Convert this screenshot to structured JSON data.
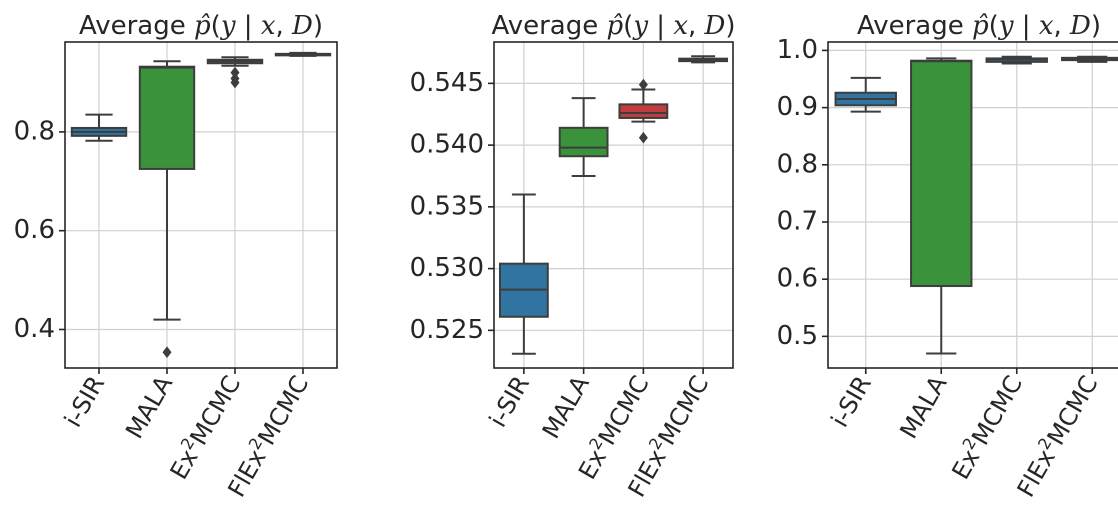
{
  "chart_data": [
    {
      "type": "box",
      "title": "Average p̂(y | x, 𝒟)",
      "categories": [
        "i-SIR",
        "MALA",
        "Ex²MCMC",
        "FlEx²MCMC"
      ],
      "colors": [
        "#3274a1",
        "#3a923a",
        "#3274a1",
        "#3274a1"
      ],
      "yticks": [
        0.4,
        0.6,
        0.8
      ],
      "ytick_labels": [
        "0.4",
        "0.6",
        "0.8"
      ],
      "ylim": [
        0.322,
        0.982
      ],
      "grid": true,
      "boxes": [
        {
          "whislo": 0.782,
          "q1": 0.792,
          "med": 0.8,
          "q3": 0.808,
          "whishi": 0.835,
          "fliers": []
        },
        {
          "whislo": 0.42,
          "q1": 0.725,
          "med": 0.93,
          "q3": 0.932,
          "whishi": 0.943,
          "fliers": [
            0.354
          ]
        },
        {
          "whislo": 0.934,
          "q1": 0.939,
          "med": 0.943,
          "q3": 0.946,
          "whishi": 0.951,
          "fliers": [
            0.92,
            0.908,
            0.9
          ]
        },
        {
          "whislo": 0.954,
          "q1": 0.956,
          "med": 0.957,
          "q3": 0.958,
          "whishi": 0.96,
          "fliers": []
        }
      ]
    },
    {
      "type": "box",
      "title": "Average p̂(y | x, 𝒟)",
      "categories": [
        "i-SIR",
        "MALA",
        "Ex²MCMC",
        "FlEx²MCMC"
      ],
      "colors": [
        "#3274a1",
        "#3a923a",
        "#c03d3e",
        "#3274a1"
      ],
      "yticks": [
        0.525,
        0.53,
        0.535,
        0.54,
        0.545
      ],
      "ytick_labels": [
        "0.525",
        "0.530",
        "0.535",
        "0.540",
        "0.545"
      ],
      "ylim": [
        0.52195,
        0.54835
      ],
      "grid": true,
      "boxes": [
        {
          "whislo": 0.5231,
          "q1": 0.5261,
          "med": 0.5283,
          "q3": 0.5304,
          "whishi": 0.536,
          "fliers": []
        },
        {
          "whislo": 0.5375,
          "q1": 0.5391,
          "med": 0.5398,
          "q3": 0.5414,
          "whishi": 0.5438,
          "fliers": []
        },
        {
          "whislo": 0.5419,
          "q1": 0.5422,
          "med": 0.5426,
          "q3": 0.5433,
          "whishi": 0.5445,
          "fliers": [
            0.5449,
            0.5406
          ]
        },
        {
          "whislo": 0.5467,
          "q1": 0.5468,
          "med": 0.5469,
          "q3": 0.547,
          "whishi": 0.5472,
          "fliers": []
        }
      ]
    },
    {
      "type": "box",
      "title": "Average p̂(y | x, 𝒟)",
      "categories": [
        "i-SIR",
        "MALA",
        "Ex²MCMC",
        "FlEx²MCMC"
      ],
      "colors": [
        "#3274a1",
        "#3a923a",
        "#3274a1",
        "#3274a1"
      ],
      "yticks": [
        0.5,
        0.6,
        0.7,
        0.8,
        0.9,
        1.0
      ],
      "ytick_labels": [
        "0.5",
        "0.6",
        "0.7",
        "0.8",
        "0.9",
        "1.0"
      ],
      "ylim": [
        0.4447,
        1.0147
      ],
      "grid": true,
      "boxes": [
        {
          "whislo": 0.893,
          "q1": 0.904,
          "med": 0.915,
          "q3": 0.926,
          "whishi": 0.952,
          "fliers": []
        },
        {
          "whislo": 0.47,
          "q1": 0.588,
          "med": 0.981,
          "q3": 0.982,
          "whishi": 0.986,
          "fliers": []
        },
        {
          "whislo": 0.977,
          "q1": 0.98,
          "med": 0.984,
          "q3": 0.986,
          "whishi": 0.989,
          "fliers": []
        },
        {
          "whislo": 0.98,
          "q1": 0.983,
          "med": 0.985,
          "q3": 0.987,
          "whishi": 0.989,
          "fliers": []
        }
      ]
    }
  ]
}
